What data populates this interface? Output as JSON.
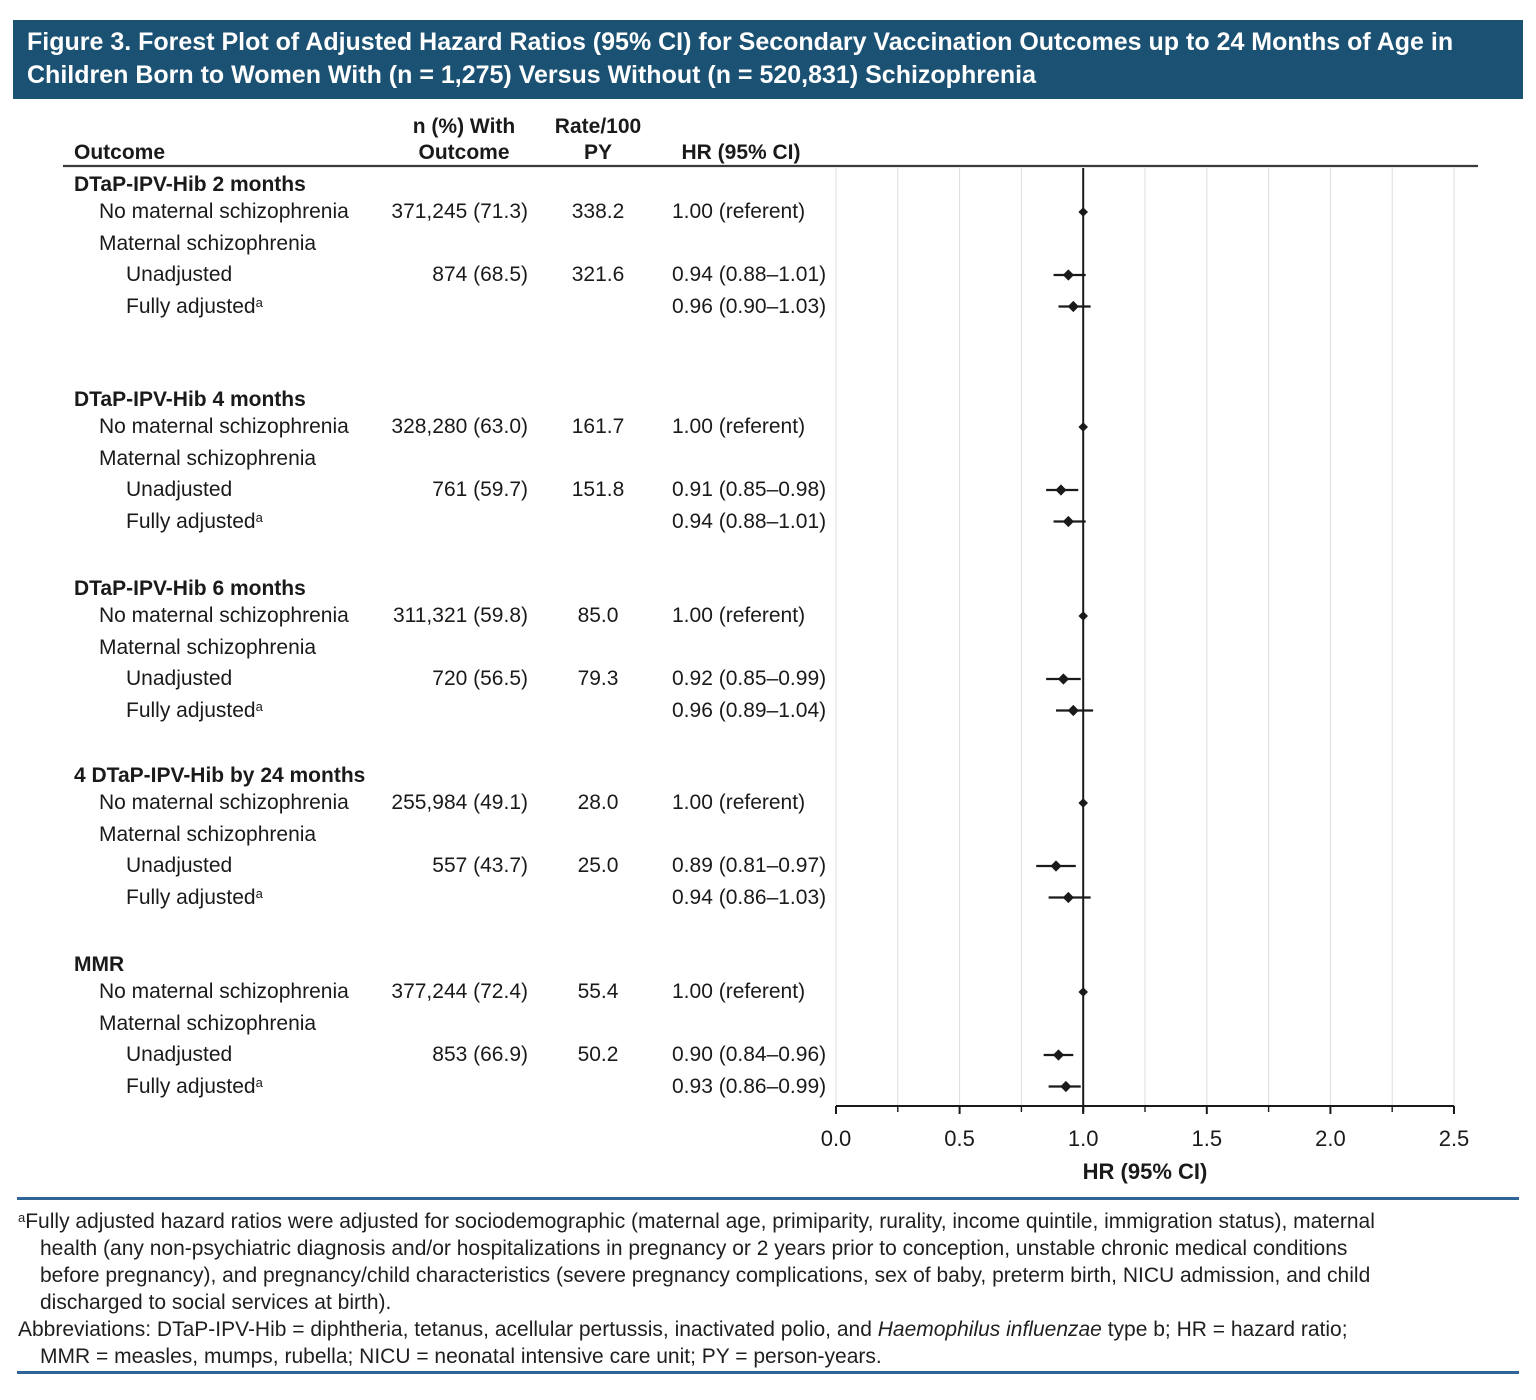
{
  "figure": {
    "title_lines": [
      "Figure 3. Forest Plot of Adjusted Hazard Ratios (95% CI) for Secondary Vaccination Outcomes up to 24 Months of Age in",
      "Children Born to Women With (n = 1,275) Versus Without (n = 520,831) Schizophrenia"
    ]
  },
  "colors": {
    "title_bar_background": "#1B5173",
    "title_text": "#FFFFFF",
    "footnote_rule_blue": "#2F6496",
    "marker_black": "#1A1A1A",
    "gridline_gray": "#DCDCDC"
  },
  "table": {
    "columns": {
      "outcome": "Outcome",
      "n_line1": "n (%) With",
      "n_line2": "Outcome",
      "rate_line1": "Rate/100",
      "rate_line2": "PY",
      "hr": "HR (95% CI)"
    },
    "sections": [
      {
        "title": "DTaP-IPV-Hib 2 months",
        "rows": [
          {
            "label": "No maternal schizophrenia",
            "indent": 1,
            "n": "371,245 (71.3)",
            "rate": "338.2",
            "hr": "1.00 (referent)"
          },
          {
            "label": "Maternal schizophrenia",
            "indent": 1
          },
          {
            "label": "Unadjusted",
            "indent": 2,
            "n": "874 (68.5)",
            "rate": "321.6",
            "hr": "0.94 (0.88–1.01)"
          },
          {
            "label": "Fully adjusted",
            "sup": "a",
            "indent": 2,
            "hr": "0.96 (0.90–1.03)"
          }
        ]
      },
      {
        "title": "DTaP-IPV-Hib 4 months",
        "rows": [
          {
            "label": "No maternal schizophrenia",
            "indent": 1,
            "n": "328,280 (63.0)",
            "rate": "161.7",
            "hr": "1.00 (referent)"
          },
          {
            "label": "Maternal schizophrenia",
            "indent": 1
          },
          {
            "label": "Unadjusted",
            "indent": 2,
            "n": "761 (59.7)",
            "rate": "151.8",
            "hr": "0.91 (0.85–0.98)"
          },
          {
            "label": "Fully adjusted",
            "sup": "a",
            "indent": 2,
            "hr": "0.94 (0.88–1.01)"
          }
        ]
      },
      {
        "title": "DTaP-IPV-Hib 6 months",
        "rows": [
          {
            "label": "No maternal schizophrenia",
            "indent": 1,
            "n": "311,321 (59.8)",
            "rate": "85.0",
            "hr": "1.00 (referent)"
          },
          {
            "label": "Maternal schizophrenia",
            "indent": 1
          },
          {
            "label": "Unadjusted",
            "indent": 2,
            "n": "720 (56.5)",
            "rate": "79.3",
            "hr": "0.92 (0.85–0.99)"
          },
          {
            "label": "Fully adjusted",
            "sup": "a",
            "indent": 2,
            "hr": "0.96 (0.89–1.04)"
          }
        ]
      },
      {
        "title": "4 DTaP-IPV-Hib by 24 months",
        "rows": [
          {
            "label": "No maternal schizophrenia",
            "indent": 1,
            "n": "255,984 (49.1)",
            "rate": "28.0",
            "hr": "1.00 (referent)"
          },
          {
            "label": "Maternal schizophrenia",
            "indent": 1
          },
          {
            "label": "Unadjusted",
            "indent": 2,
            "n": "557 (43.7)",
            "rate": "25.0",
            "hr": "0.89 (0.81–0.97)"
          },
          {
            "label": "Fully adjusted",
            "sup": "a",
            "indent": 2,
            "hr": "0.94 (0.86–1.03)"
          }
        ]
      },
      {
        "title": "MMR",
        "rows": [
          {
            "label": "No maternal schizophrenia",
            "indent": 1,
            "n": "377,244 (72.4)",
            "rate": "55.4",
            "hr": "1.00 (referent)"
          },
          {
            "label": "Maternal schizophrenia",
            "indent": 1
          },
          {
            "label": "Unadjusted",
            "indent": 2,
            "n": "853 (66.9)",
            "rate": "50.2",
            "hr": "0.90 (0.84–0.96)"
          },
          {
            "label": "Fully adjusted",
            "sup": "a",
            "indent": 2,
            "hr": "0.93 (0.86–0.99)"
          }
        ]
      }
    ]
  },
  "chart_data": {
    "type": "scatter",
    "subtype": "forest-plot",
    "title": "Figure 3. Forest Plot of Adjusted Hazard Ratios (95% CI) for Secondary Vaccination Outcomes up to 24 Months of Age in Children Born to Women With (n = 1,275) Versus Without (n = 520,831) Schizophrenia",
    "xlabel": "HR (95% CI)",
    "xlim": [
      0.0,
      2.5
    ],
    "x_major_ticks": [
      0.0,
      0.5,
      1.0,
      1.5,
      2.0,
      2.5
    ],
    "x_minor_step": 0.25,
    "grid": true,
    "reference_line": 1.0,
    "marker_shape": "diamond",
    "groups": [
      {
        "outcome": "DTaP-IPV-Hib 2 months",
        "points": [
          {
            "label": "No maternal schizophrenia",
            "row": 0,
            "hr": 1.0,
            "ci": null,
            "referent": true
          },
          {
            "label": "Unadjusted",
            "row": 2,
            "hr": 0.94,
            "ci": [
              0.88,
              1.01
            ]
          },
          {
            "label": "Fully adjusted",
            "row": 3,
            "hr": 0.96,
            "ci": [
              0.9,
              1.03
            ]
          }
        ]
      },
      {
        "outcome": "DTaP-IPV-Hib 4 months",
        "points": [
          {
            "label": "No maternal schizophrenia",
            "row": 0,
            "hr": 1.0,
            "ci": null,
            "referent": true
          },
          {
            "label": "Unadjusted",
            "row": 2,
            "hr": 0.91,
            "ci": [
              0.85,
              0.98
            ]
          },
          {
            "label": "Fully adjusted",
            "row": 3,
            "hr": 0.94,
            "ci": [
              0.88,
              1.01
            ]
          }
        ]
      },
      {
        "outcome": "DTaP-IPV-Hib 6 months",
        "points": [
          {
            "label": "No maternal schizophrenia",
            "row": 0,
            "hr": 1.0,
            "ci": null,
            "referent": true
          },
          {
            "label": "Unadjusted",
            "row": 2,
            "hr": 0.92,
            "ci": [
              0.85,
              0.99
            ]
          },
          {
            "label": "Fully adjusted",
            "row": 3,
            "hr": 0.96,
            "ci": [
              0.89,
              1.04
            ]
          }
        ]
      },
      {
        "outcome": "4 DTaP-IPV-Hib by 24 months",
        "points": [
          {
            "label": "No maternal schizophrenia",
            "row": 0,
            "hr": 1.0,
            "ci": null,
            "referent": true
          },
          {
            "label": "Unadjusted",
            "row": 2,
            "hr": 0.89,
            "ci": [
              0.81,
              0.97
            ]
          },
          {
            "label": "Fully adjusted",
            "row": 3,
            "hr": 0.94,
            "ci": [
              0.86,
              1.03
            ]
          }
        ]
      },
      {
        "outcome": "MMR",
        "points": [
          {
            "label": "No maternal schizophrenia",
            "row": 0,
            "hr": 1.0,
            "ci": null,
            "referent": true
          },
          {
            "label": "Unadjusted",
            "row": 2,
            "hr": 0.9,
            "ci": [
              0.84,
              0.96
            ]
          },
          {
            "label": "Fully adjusted",
            "row": 3,
            "hr": 0.93,
            "ci": [
              0.86,
              0.99
            ]
          }
        ]
      }
    ]
  },
  "axis": {
    "label": "HR (95% CI)",
    "tick_labels": [
      "0.0",
      "0.5",
      "1.0",
      "1.5",
      "2.0",
      "2.5"
    ]
  },
  "footnote": {
    "marker": "a",
    "lines": [
      "Fully adjusted hazard ratios were adjusted for sociodemographic (maternal age, primiparity, rurality, income quintile, immigration status), maternal",
      "health (any non-psychiatric diagnosis and/or hospitalizations in pregnancy or 2 years prior to conception, unstable chronic medical conditions",
      "before pregnancy), and pregnancy/child characteristics (severe pregnancy complications, sex of baby, preterm birth, NICU admission, and child",
      "discharged to social services at birth)."
    ]
  },
  "abbreviations": {
    "line1_pre": "Abbreviations: DTaP-IPV-Hib = diphtheria, tetanus, acellular pertussis, inactivated polio, and ",
    "line1_italic": "Haemophilus influenzae",
    "line1_post": " type b; HR = hazard ratio;",
    "line2": "MMR = measles, mumps, rubella; NICU = neonatal intensive care unit; PY = person-years."
  }
}
